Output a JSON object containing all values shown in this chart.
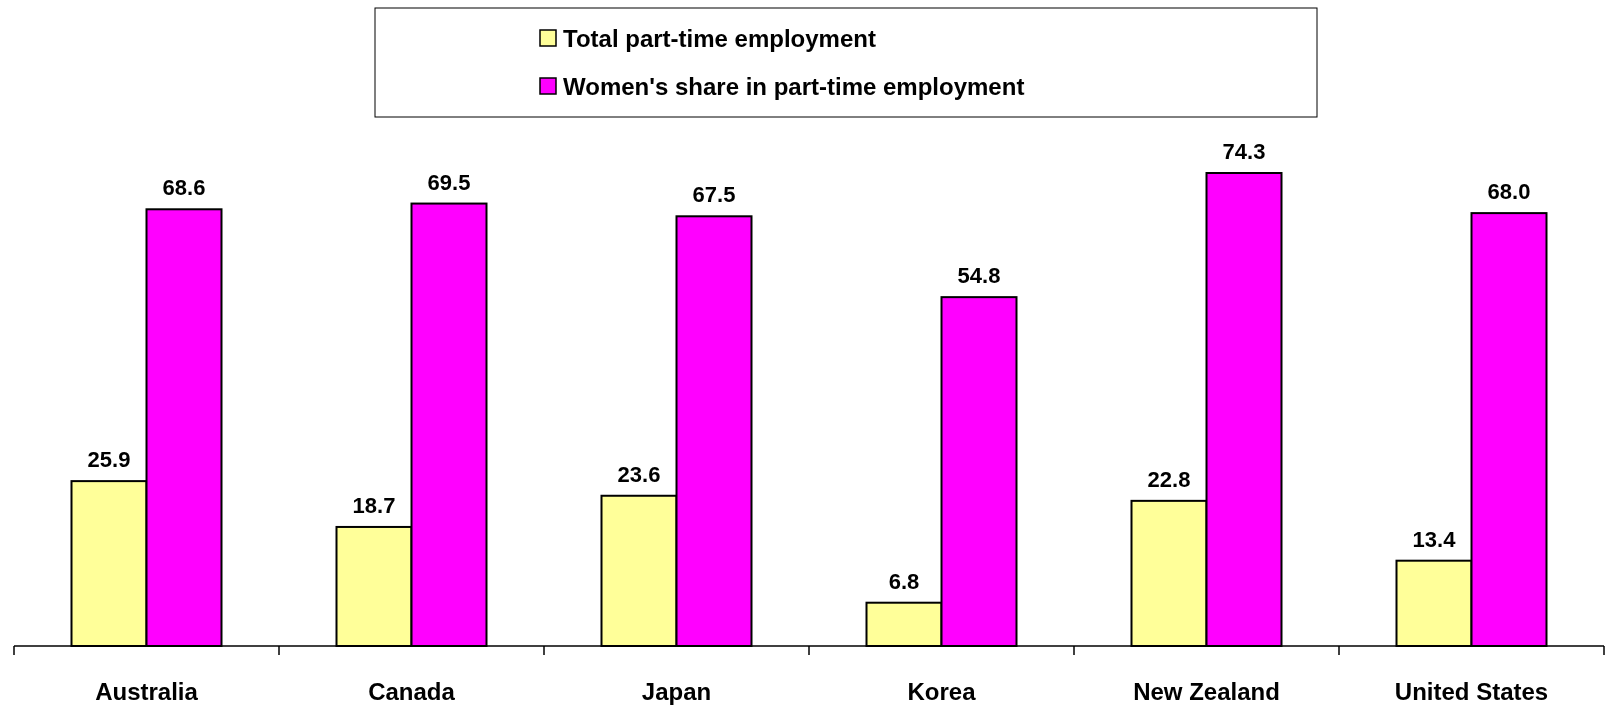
{
  "chart_data": {
    "type": "bar",
    "categories": [
      "Australia",
      "Canada",
      "Japan",
      "Korea",
      "New Zealand",
      "United States"
    ],
    "series": [
      {
        "name": "Total part-time employment",
        "color": "#ffff99",
        "values": [
          25.9,
          18.7,
          23.6,
          6.8,
          22.8,
          13.4
        ]
      },
      {
        "name": "Women's share in part-time employment",
        "color": "#ff00ff",
        "values": [
          68.6,
          69.5,
          67.5,
          54.8,
          74.3,
          68.0
        ],
        "value_labels": [
          "68.6",
          "69.5",
          "67.5",
          "54.8",
          "74.3",
          "68.0"
        ]
      }
    ],
    "data_labels": true,
    "legend": "top",
    "tick_labels": "x"
  }
}
